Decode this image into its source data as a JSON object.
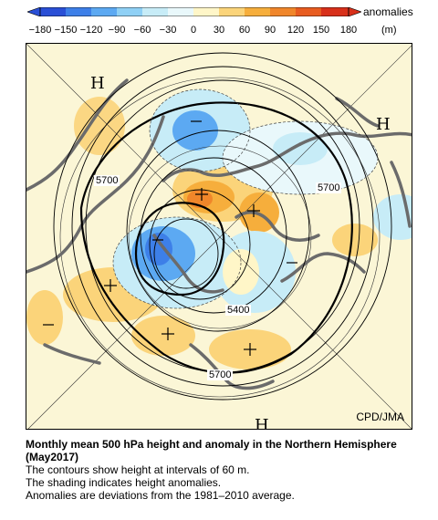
{
  "colorbar": {
    "label": "anomalies",
    "unit": "(m)",
    "ticks": [
      "−180",
      "−150",
      "−120",
      "−90",
      "−60",
      "−30",
      "0",
      "30",
      "60",
      "90",
      "120",
      "150",
      "180"
    ],
    "colors": [
      "#2a4fd6",
      "#3d7fe8",
      "#5ca9f2",
      "#8fd0f5",
      "#c7ecf7",
      "#e9f8fb",
      "#fff6c8",
      "#fbd47a",
      "#f6ae3c",
      "#f0862a",
      "#e85c20",
      "#d8301a"
    ]
  },
  "map": {
    "h_labels": [
      "H",
      "H",
      "H"
    ],
    "contour_labels": [
      "5700",
      "5700",
      "5400",
      "5700"
    ],
    "credit": "CPD/JMA"
  },
  "caption": {
    "title": "Monthly mean 500 hPa height and anomaly in the Northern Hemisphere (May2017)",
    "line1": "The contours show height at intervals of 60 m.",
    "line2": "The shading indicates height anomalies.",
    "line3": "Anomalies are deviations from the 1981–2010 average."
  }
}
